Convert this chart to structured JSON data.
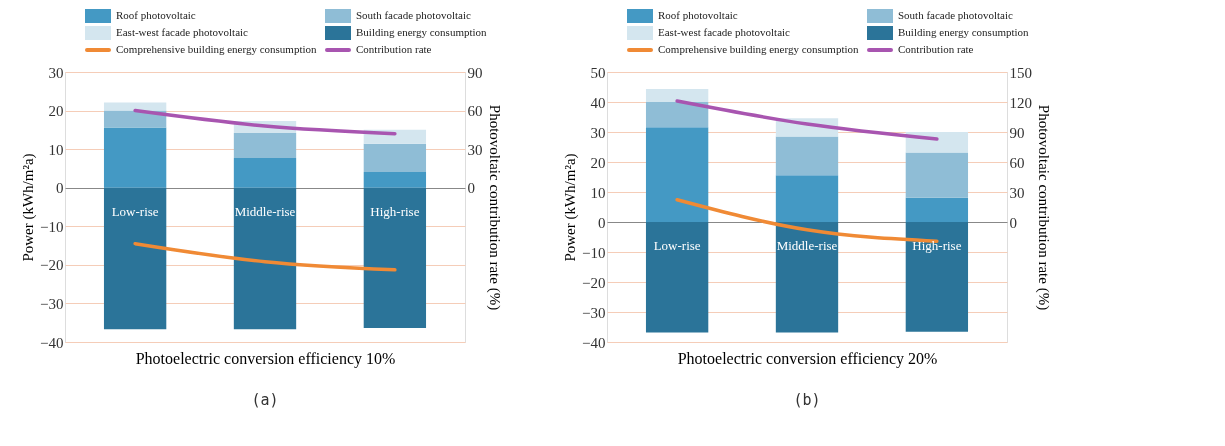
{
  "chart_data": [
    {
      "type": "bar",
      "stacked": true,
      "categories": [
        "Low-rise",
        "Middle-rise",
        "High-rise"
      ],
      "xlabel": "Photoelectric conversion efficiency 10%",
      "ylabel": "Power (kWh/m²a)",
      "y2label": "Photovoltaic contribution rate (%)",
      "ylim": [
        -40,
        30
      ],
      "yticks": [
        -40,
        -30,
        -20,
        -10,
        0,
        10,
        20,
        30
      ],
      "y2lim": [
        -120,
        90
      ],
      "y2ticks": [
        0,
        30,
        60,
        90
      ],
      "grid": "y",
      "legend": "top",
      "annotations": [
        "(a)"
      ],
      "series": [
        {
          "name": "Roof photovoltaic",
          "color": "#4499c4",
          "values": [
            15.6,
            7.7,
            4.1
          ]
        },
        {
          "name": "South facade photovoltaic",
          "color": "#8fbdd6",
          "values": [
            4.4,
            6.5,
            7.3
          ]
        },
        {
          "name": "East-west facade photovoltaic",
          "color": "#d4e6ef",
          "values": [
            2.1,
            3.1,
            3.6
          ]
        },
        {
          "name": "Building energy consumption",
          "color": "#2b7499",
          "values": [
            -36.7,
            -36.7,
            -36.4
          ]
        },
        {
          "name": "Comprehensive building energy consumption",
          "type": "line",
          "color": "#f08a35",
          "values": [
            -14.5,
            -19.2,
            -21.3
          ]
        },
        {
          "name": "Contribution rate",
          "type": "line",
          "axis": "y2",
          "color": "#a855b0",
          "values": [
            60,
            48,
            42
          ]
        }
      ]
    },
    {
      "type": "bar",
      "stacked": true,
      "categories": [
        "Low-rise",
        "Middle-rise",
        "High-rise"
      ],
      "xlabel": "Photoelectric conversion efficiency 20%",
      "ylabel": "Power (kWh/m²a)",
      "y2label": "Photovoltaic contribution rate (%)",
      "ylim": [
        -40,
        50
      ],
      "yticks": [
        -40,
        -30,
        -20,
        -10,
        0,
        10,
        20,
        30,
        40,
        50
      ],
      "y2lim": [
        -120,
        150
      ],
      "y2ticks": [
        0,
        30,
        60,
        90,
        120,
        150
      ],
      "grid": "y",
      "legend": "top",
      "annotations": [
        "(b)"
      ],
      "series": [
        {
          "name": "Roof photovoltaic",
          "color": "#4499c4",
          "values": [
            31.6,
            15.6,
            8.1
          ]
        },
        {
          "name": "South facade photovoltaic",
          "color": "#8fbdd6",
          "values": [
            8.4,
            12.9,
            15.1
          ]
        },
        {
          "name": "East-west facade photovoltaic",
          "color": "#d4e6ef",
          "values": [
            4.3,
            6.1,
            6.8
          ]
        },
        {
          "name": "Building energy consumption",
          "color": "#2b7499",
          "values": [
            -36.8,
            -36.8,
            -36.6
          ]
        },
        {
          "name": "Comprehensive building energy consumption",
          "type": "line",
          "color": "#f08a35",
          "values": [
            7.4,
            -2.6,
            -6.4
          ]
        },
        {
          "name": "Contribution rate",
          "type": "line",
          "axis": "y2",
          "color": "#a855b0",
          "values": [
            121,
            98,
            83
          ]
        }
      ]
    }
  ]
}
